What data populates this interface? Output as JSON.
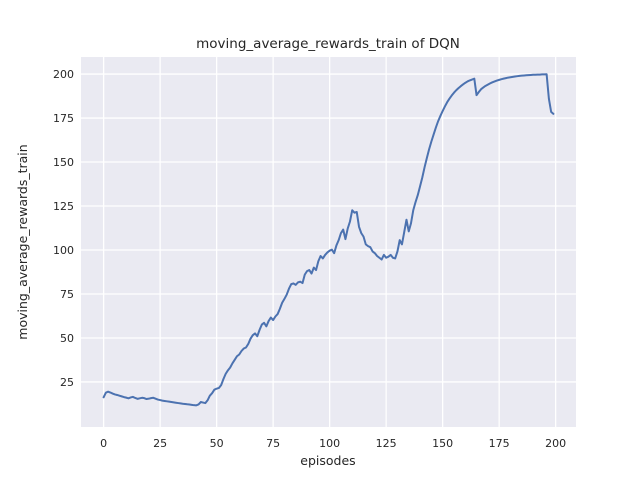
{
  "figure": {
    "background_color": "#ffffff",
    "axes_background_color": "#eaeaf2",
    "grid_color": "#ffffff",
    "text_color": "#262626"
  },
  "chart_data": {
    "type": "line",
    "title": "moving_average_rewards_train of DQN",
    "xlabel": "episodes",
    "ylabel": "moving_average_rewards_train",
    "grid": true,
    "legend": null,
    "xlim": [
      -10,
      209
    ],
    "ylim": [
      -0.6,
      209.7
    ],
    "x_ticks": [
      0,
      25,
      50,
      75,
      100,
      125,
      150,
      175,
      200
    ],
    "y_ticks": [
      25,
      50,
      75,
      100,
      125,
      150,
      175,
      200
    ],
    "series": [
      {
        "name": "DQN",
        "color": "#4c72b0",
        "x": [
          0,
          1,
          2,
          3,
          4,
          5,
          6,
          7,
          8,
          9,
          10,
          11,
          12,
          13,
          14,
          15,
          16,
          17,
          18,
          19,
          20,
          21,
          22,
          23,
          24,
          25,
          26,
          27,
          28,
          29,
          30,
          31,
          32,
          33,
          34,
          35,
          36,
          37,
          38,
          39,
          40,
          41,
          42,
          43,
          44,
          45,
          46,
          47,
          48,
          49,
          50,
          51,
          52,
          53,
          54,
          55,
          56,
          57,
          58,
          59,
          60,
          61,
          62,
          63,
          64,
          65,
          66,
          67,
          68,
          69,
          70,
          71,
          72,
          73,
          74,
          75,
          76,
          77,
          78,
          79,
          80,
          81,
          82,
          83,
          84,
          85,
          86,
          87,
          88,
          89,
          90,
          91,
          92,
          93,
          94,
          95,
          96,
          97,
          98,
          99,
          100,
          101,
          102,
          103,
          104,
          105,
          106,
          107,
          108,
          109,
          110,
          111,
          112,
          113,
          114,
          115,
          116,
          117,
          118,
          119,
          120,
          121,
          122,
          123,
          124,
          125,
          126,
          127,
          128,
          129,
          130,
          131,
          132,
          133,
          134,
          135,
          136,
          137,
          138,
          139,
          140,
          141,
          142,
          143,
          144,
          145,
          146,
          147,
          148,
          149,
          150,
          151,
          152,
          153,
          154,
          155,
          156,
          157,
          158,
          159,
          160,
          161,
          162,
          163,
          164,
          165,
          166,
          167,
          168,
          169,
          170,
          171,
          172,
          173,
          174,
          175,
          176,
          177,
          178,
          179,
          180,
          181,
          182,
          183,
          184,
          185,
          186,
          187,
          188,
          189,
          190,
          191,
          192,
          193,
          194,
          195,
          196,
          197,
          198,
          199
        ],
        "y": [
          16.3,
          18.9,
          19.5,
          19.0,
          18.4,
          17.9,
          17.6,
          17.2,
          16.8,
          16.4,
          16.1,
          15.7,
          16.2,
          16.5,
          15.9,
          15.4,
          15.7,
          16.0,
          15.8,
          15.3,
          15.5,
          15.8,
          16.0,
          15.5,
          15.0,
          14.7,
          14.4,
          14.2,
          14.0,
          13.8,
          13.6,
          13.4,
          13.2,
          13.0,
          12.8,
          12.6,
          12.5,
          12.3,
          12.2,
          12.0,
          11.8,
          11.7,
          12.2,
          13.6,
          13.3,
          13.0,
          14.6,
          17.2,
          18.6,
          20.6,
          21.2,
          21.6,
          23.2,
          26.6,
          29.6,
          31.6,
          33.2,
          35.6,
          37.6,
          39.6,
          40.6,
          42.6,
          44.0,
          44.6,
          46.6,
          49.6,
          51.6,
          52.6,
          51.0,
          54.6,
          57.6,
          58.6,
          56.6,
          59.6,
          61.6,
          60.2,
          62.2,
          63.6,
          66.6,
          70.0,
          72.2,
          74.6,
          78.0,
          80.6,
          81.0,
          80.2,
          81.6,
          82.0,
          81.2,
          86.0,
          88.0,
          88.6,
          86.6,
          90.0,
          88.6,
          93.6,
          96.6,
          95.2,
          97.2,
          98.6,
          99.6,
          100.2,
          98.2,
          102.6,
          105.6,
          109.6,
          111.6,
          106.2,
          112.2,
          116.2,
          122.6,
          121.2,
          121.6,
          113.2,
          109.6,
          107.6,
          103.2,
          102.2,
          101.6,
          99.2,
          98.2,
          96.6,
          95.6,
          94.6,
          97.2,
          95.6,
          96.2,
          97.2,
          95.6,
          95.2,
          99.2,
          105.6,
          103.2,
          110.2,
          117.2,
          110.6,
          115.2,
          122.6,
          127.2,
          131.2,
          136.2,
          141.2,
          147.0,
          152.2,
          157.2,
          161.6,
          165.6,
          169.6,
          173.2,
          176.2,
          179.0,
          181.6,
          184.0,
          186.0,
          187.8,
          189.4,
          190.8,
          192.0,
          193.1,
          194.1,
          195.0,
          195.8,
          196.4,
          196.9,
          197.4,
          188.0,
          189.8,
          191.4,
          192.4,
          193.3,
          194.0,
          194.7,
          195.3,
          195.8,
          196.3,
          196.7,
          197.1,
          197.4,
          197.7,
          198.0,
          198.2,
          198.4,
          198.6,
          198.8,
          199.0,
          199.1,
          199.2,
          199.3,
          199.4,
          199.5,
          199.6,
          199.6,
          199.7,
          199.7,
          199.8,
          199.8,
          199.9,
          186.0,
          178.5,
          177.4
        ]
      }
    ]
  }
}
